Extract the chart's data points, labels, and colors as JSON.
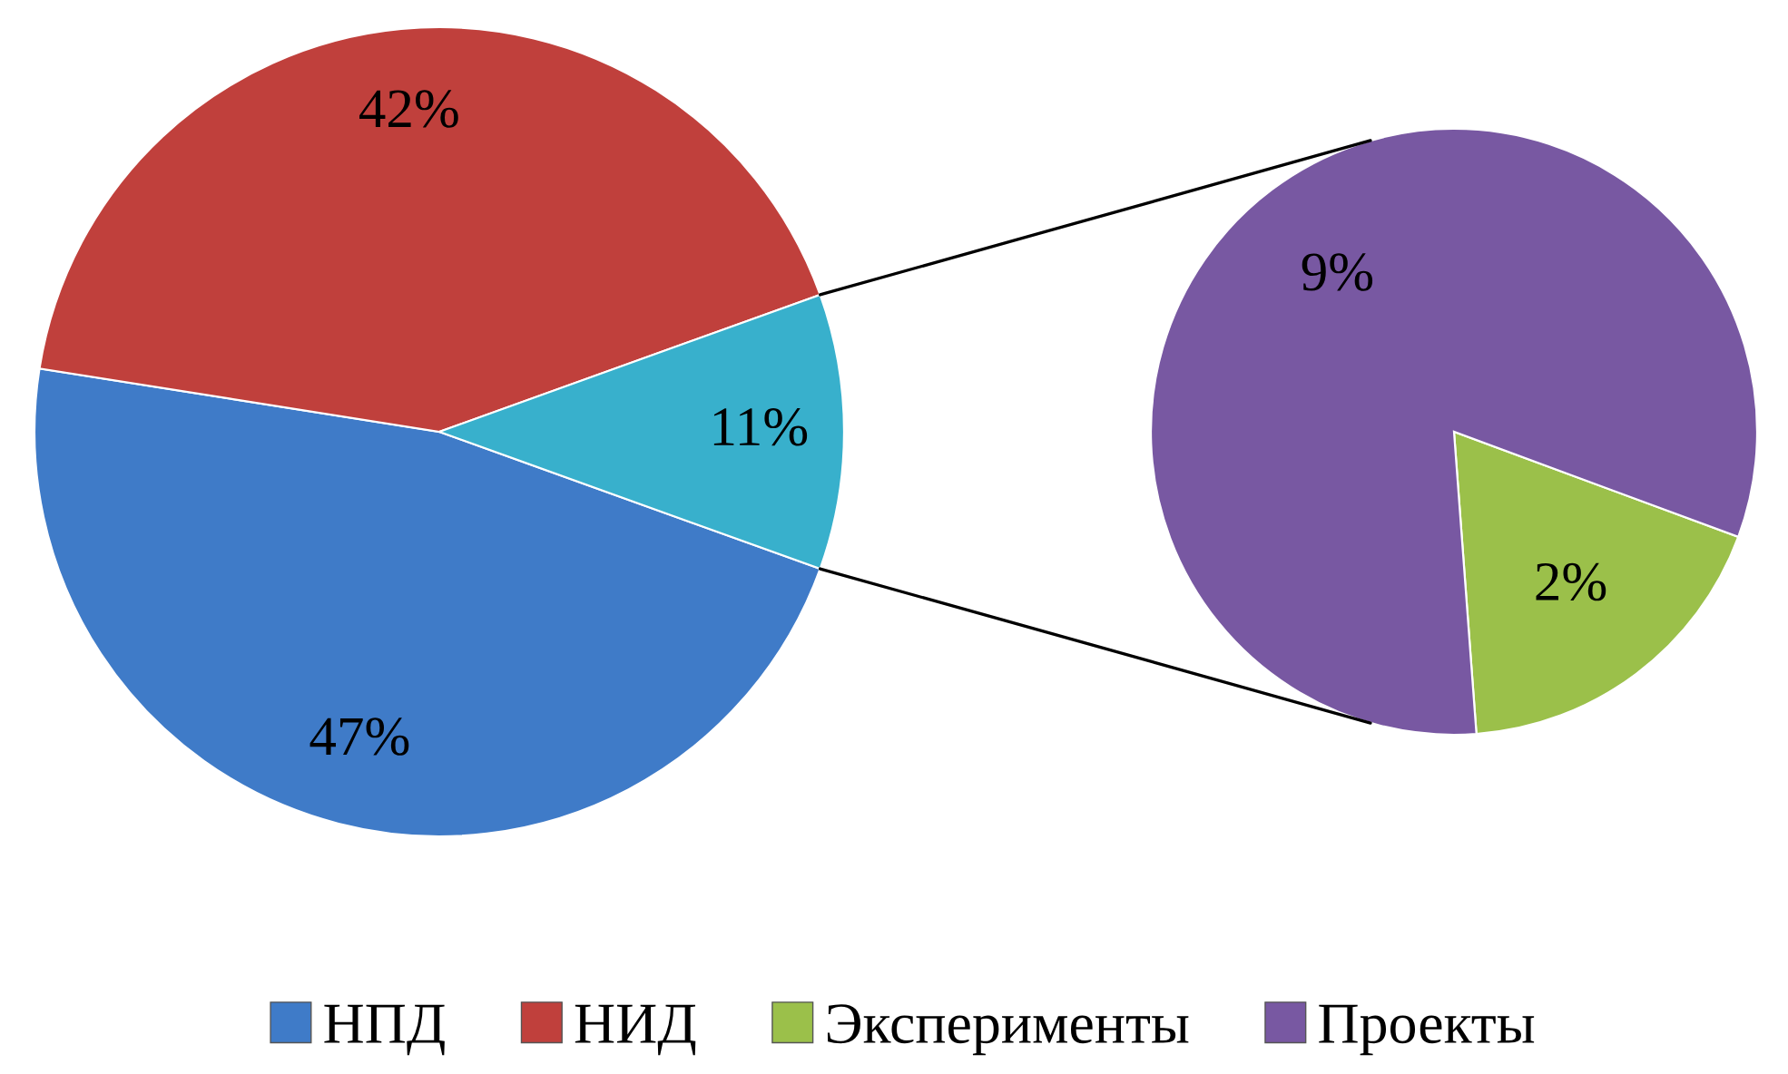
{
  "chart_data": [
    {
      "type": "pie",
      "categories": [
        "НПД",
        "НИД",
        null
      ],
      "values": [
        47,
        42,
        11
      ],
      "colors": [
        "#3f7bc8",
        "#c0403c",
        "#38b0cc"
      ],
      "value_labels": [
        "47%",
        "42%",
        "11%"
      ],
      "legend": "bottom"
    },
    {
      "type": "pie",
      "categories": [
        "Эксперименты",
        "Проекты"
      ],
      "values": [
        2,
        9
      ],
      "colors": [
        "#9bc04a",
        "#7858a2"
      ],
      "value_labels": [
        "2%",
        "9%"
      ],
      "legend": "bottom"
    }
  ]
}
